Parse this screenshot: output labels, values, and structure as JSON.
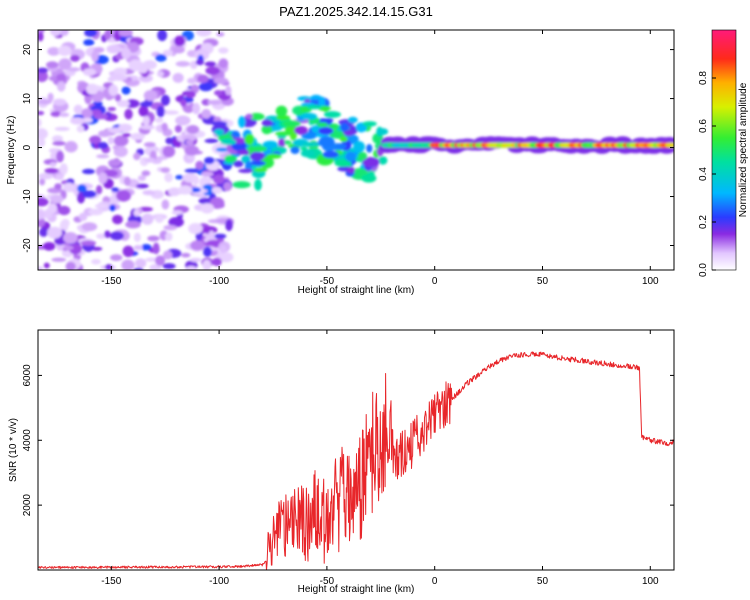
{
  "figure": {
    "title": "PAZ1.2025.342.14.15.G31"
  },
  "chart_data": [
    {
      "type": "heatmap",
      "title": "PAZ1.2025.342.14.15.G31",
      "xlabel": "Height of straight line (km)",
      "ylabel": "Frequency (Hz)",
      "xlim": [
        -184,
        111
      ],
      "ylim": [
        -25,
        24
      ],
      "xticks": [
        -150,
        -100,
        -50,
        0,
        50,
        100
      ],
      "yticks": [
        -20,
        -10,
        0,
        10,
        20
      ],
      "colorbar": {
        "label": "Normalized spectral amplitude",
        "range": [
          0,
          1
        ],
        "ticks": [
          "0.0",
          "0.2",
          "0.4",
          "0.6",
          "0.8"
        ]
      },
      "features": [
        {
          "region": "noise",
          "x": [
            -184,
            -95
          ],
          "y": [
            -25,
            24
          ],
          "amplitude": 0.12
        },
        {
          "region": "ridge",
          "x": [
            -100,
            -22
          ],
          "y": [
            -10,
            10
          ],
          "amplitude": 0.45
        },
        {
          "region": "ridge",
          "x": [
            -22,
            111
          ],
          "y": [
            0,
            1
          ],
          "amplitude": 0.95
        }
      ]
    },
    {
      "type": "line",
      "xlabel": "Height of straight line (km)",
      "ylabel": "SNR (10 * v/v)",
      "xlim": [
        -184,
        111
      ],
      "ylim": [
        0,
        7400
      ],
      "xticks": [
        -150,
        -100,
        -50,
        0,
        50,
        100
      ],
      "yticks": [
        2000,
        4000,
        6000
      ],
      "series": [
        {
          "name": "SNR",
          "color": "#e8262a",
          "x": [
            -184,
            -160,
            -140,
            -120,
            -100,
            -90,
            -80,
            -76,
            -72,
            -68,
            -64,
            -60,
            -56,
            -52,
            -48,
            -44,
            -40,
            -36,
            -32,
            -28,
            -25,
            -22,
            -18,
            -14,
            -10,
            -6,
            -2,
            2,
            6,
            10,
            14,
            18,
            22,
            26,
            30,
            34,
            38,
            42,
            46,
            50,
            56,
            62,
            68,
            74,
            80,
            86,
            90,
            94,
            95,
            96,
            100,
            104,
            108,
            111
          ],
          "y": [
            80,
            80,
            90,
            90,
            100,
            110,
            160,
            400,
            1100,
            900,
            1200,
            800,
            1300,
            900,
            1200,
            1500,
            1800,
            1300,
            2500,
            2900,
            3500,
            3700,
            3500,
            3600,
            3900,
            4200,
            4600,
            4900,
            5200,
            5400,
            5700,
            5900,
            6100,
            6300,
            6450,
            6560,
            6600,
            6650,
            6660,
            6640,
            6560,
            6500,
            6460,
            6400,
            6360,
            6300,
            6280,
            6250,
            6200,
            4100,
            4000,
            3950,
            3900,
            3950
          ]
        }
      ]
    }
  ]
}
